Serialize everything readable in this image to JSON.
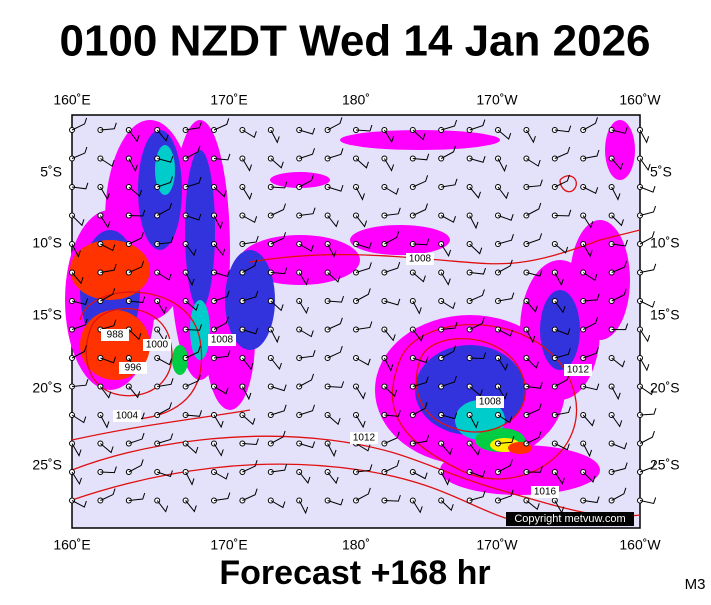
{
  "title": "0100 NZDT Wed 14 Jan 2026",
  "footer": "Forecast +168 hr",
  "model": "M3",
  "copyright": "Copyright metvuw.com",
  "longitude_labels": [
    "160˚E",
    "170˚E",
    "180˚",
    "170˚W",
    "160˚W"
  ],
  "latitude_labels": [
    "5˚S",
    "10˚S",
    "15˚S",
    "20˚S",
    "25˚S"
  ],
  "contour_labels": [
    "1008",
    "1012",
    "1012",
    "1016",
    "1008",
    "1004",
    "996",
    "1000",
    "1008",
    "988"
  ]
}
